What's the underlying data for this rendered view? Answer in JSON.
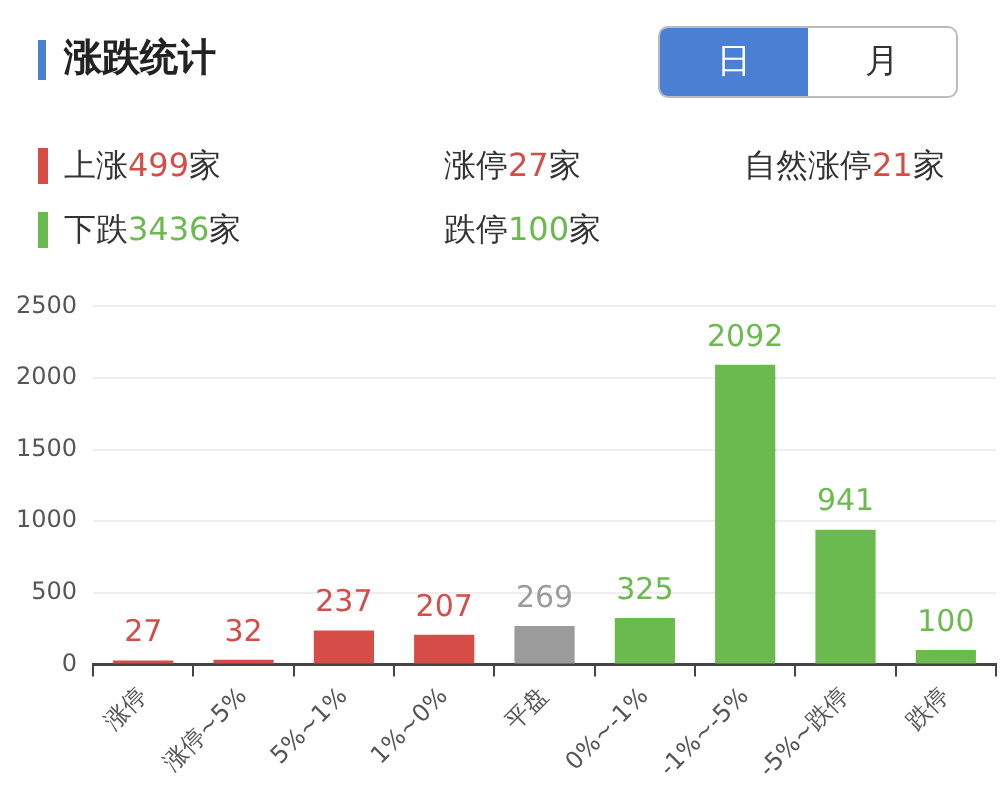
{
  "chart_data": {
    "type": "bar",
    "title": "涨跌统计",
    "annotations": [
      "上涨499家",
      "涨停27家",
      "自然涨停21家",
      "下跌3436家",
      "跌停100家",
      "日",
      "月"
    ],
    "categories": [
      "涨停",
      "涨停~5%",
      "5%~1%",
      "1%~0%",
      "平盘",
      "0%~-1%",
      "-1%~-5%",
      "-5%~跌停",
      "跌停"
    ],
    "values": [
      27,
      32,
      237,
      207,
      269,
      325,
      2092,
      941,
      100
    ],
    "colors": [
      "#d64c47",
      "#d64c47",
      "#d64c47",
      "#d64c47",
      "#9b9b9b",
      "#6aba4e",
      "#6aba4e",
      "#6aba4e",
      "#6aba4e"
    ],
    "ylim": [
      0,
      2500
    ],
    "yticks": [
      0,
      500,
      1000,
      1500,
      2000,
      2500
    ],
    "grid": "y",
    "data_labels": true,
    "legend": false
  }
}
